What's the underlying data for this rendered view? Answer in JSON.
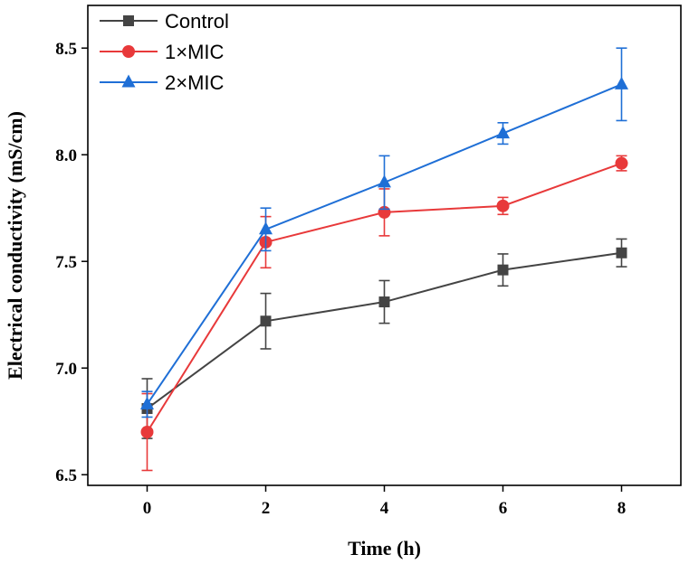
{
  "chart_data": {
    "type": "line",
    "title": "",
    "xlabel": "Time (h)",
    "ylabel": "Electrical conductivity (mS/cm)",
    "x": [
      0,
      2,
      4,
      6,
      8
    ],
    "xlim": [
      -1,
      9
    ],
    "ylim": [
      6.45,
      8.7
    ],
    "xticks": [
      "0",
      "2",
      "4",
      "6",
      "8"
    ],
    "yticks": [
      "6.5",
      "7.0",
      "7.5",
      "8.0",
      "8.5"
    ],
    "xtick_values": [
      0,
      2,
      4,
      6,
      8
    ],
    "ytick_values": [
      6.5,
      7.0,
      7.5,
      8.0,
      8.5
    ],
    "legend_position": "top-left",
    "series": [
      {
        "name": "Control",
        "color": "#444444",
        "marker": "square",
        "values": [
          6.81,
          7.22,
          7.31,
          7.46,
          7.54
        ],
        "errors": [
          0.14,
          0.13,
          0.1,
          0.075,
          0.065
        ]
      },
      {
        "name": "1×MIC",
        "color": "#e8393a",
        "marker": "circle",
        "values": [
          6.7,
          7.59,
          7.73,
          7.76,
          7.96
        ],
        "errors": [
          0.18,
          0.12,
          0.11,
          0.04,
          0.035
        ]
      },
      {
        "name": "2×MIC",
        "color": "#1f6fd6",
        "marker": "triangle",
        "values": [
          6.83,
          7.65,
          7.87,
          8.1,
          8.33
        ],
        "errors": [
          0.06,
          0.1,
          0.125,
          0.05,
          0.17
        ]
      }
    ]
  }
}
